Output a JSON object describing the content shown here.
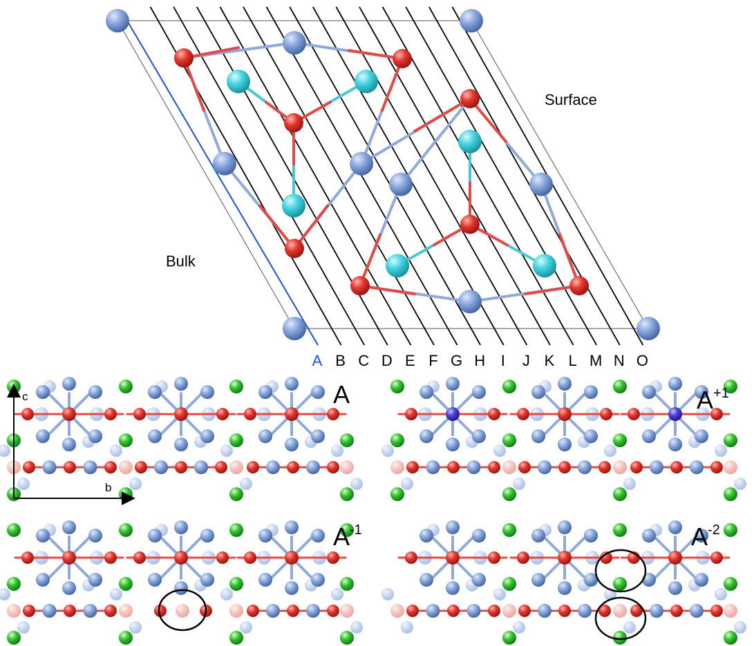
{
  "top": {
    "bulk_label": "Bulk",
    "surface_label": "Surface",
    "plane_letters": [
      "A",
      "B",
      "C",
      "D",
      "E",
      "F",
      "G",
      "H",
      "I",
      "J",
      "K",
      "L",
      "M",
      "N",
      "O"
    ],
    "highlight_letter_color": "#1f4ed8"
  },
  "panels": {
    "a": {
      "base": "A",
      "sup": ""
    },
    "a_plus1": {
      "base": "A",
      "sup": "+1"
    },
    "a_minus1": {
      "base": "A",
      "sup": "-1"
    },
    "a_minus2": {
      "base": "A",
      "sup": "-2"
    }
  },
  "axes": {
    "c_label": "c",
    "b_label": "b"
  },
  "colors": {
    "blue_atom": "#7f9fd9",
    "red_atom": "#e3382f",
    "cyan_atom": "#3fd0dd",
    "green_atom": "#2fbf2f",
    "purple_atom": "#4b3fd6",
    "bond_red": "#e34a45",
    "bond_blue": "#8fa9db",
    "bond_cyan": "#49c7d4",
    "bulk_edge": "#1f4ed8"
  }
}
